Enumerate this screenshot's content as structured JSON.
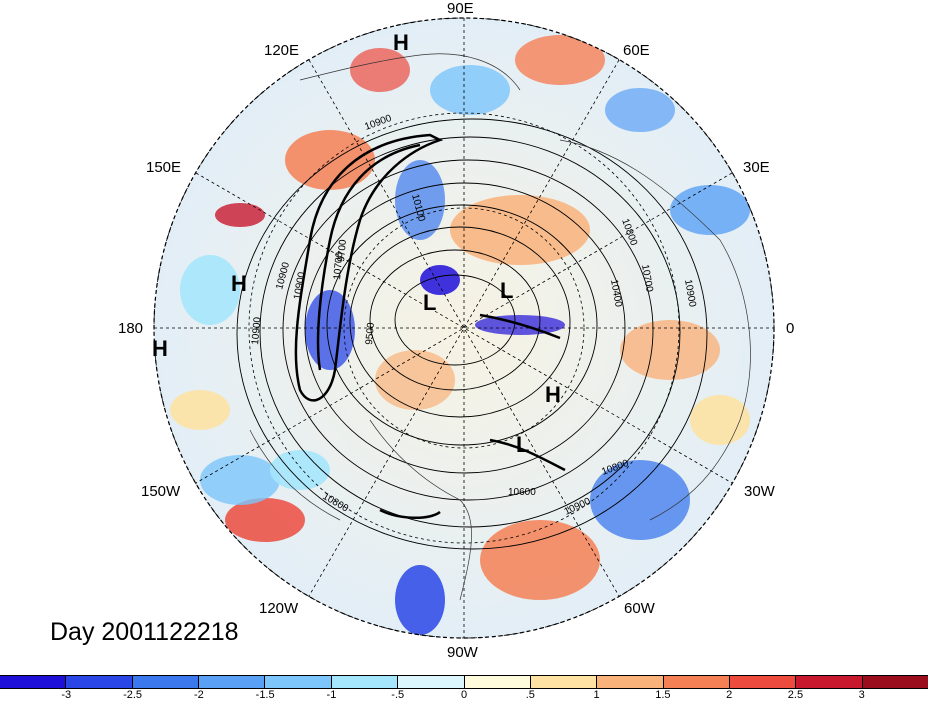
{
  "map": {
    "projection": "north-polar-stereographic",
    "contour_labels": [
      "10900",
      "10900",
      "9500",
      "10900",
      "10800",
      "10600",
      "10900",
      "10800",
      "10100",
      "10400",
      "10700",
      "10800",
      "10900",
      "10700",
      "10900",
      "9700"
    ],
    "pressure_centers": [
      {
        "type": "H"
      },
      {
        "type": "H"
      },
      {
        "type": "H"
      },
      {
        "type": "H"
      },
      {
        "type": "L"
      },
      {
        "type": "L"
      },
      {
        "type": "L"
      }
    ],
    "longitude_labels": [
      "90E",
      "120E",
      "60E",
      "150E",
      "30E",
      "180",
      "0",
      "150W",
      "30W",
      "120W",
      "60W",
      "90W"
    ]
  },
  "title": "Day 2001122218",
  "colorbar": {
    "colors": [
      "#1e0fd9",
      "#2a46e6",
      "#3b78ee",
      "#5aa0f5",
      "#7cc6fb",
      "#a6e6fd",
      "#dcf6fe",
      "#fefbdc",
      "#fde2a4",
      "#f9b27a",
      "#f58055",
      "#ec4b3e",
      "#c8182d",
      "#9b0d1c"
    ],
    "ticks": [
      "-3",
      "-2.5",
      "-2",
      "-1.5",
      "-1",
      "-.5",
      "0",
      ".5",
      "1",
      "1.5",
      "2",
      "2.5",
      "3"
    ]
  }
}
